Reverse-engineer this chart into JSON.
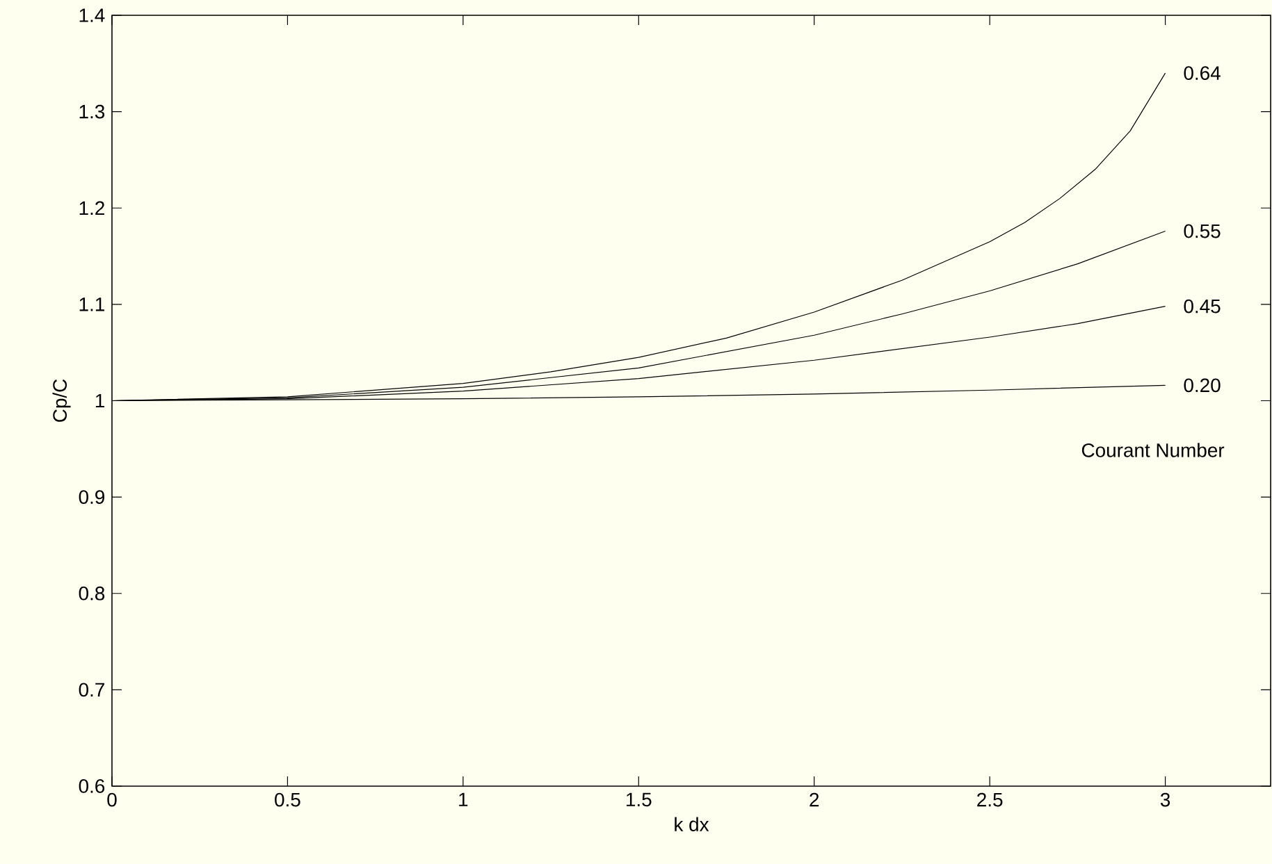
{
  "chart_data": {
    "type": "line",
    "xlabel": "k dx",
    "ylabel": "Cp/C",
    "xlim": [
      0,
      3.3
    ],
    "ylim": [
      0.6,
      1.4
    ],
    "xticks": [
      0,
      0.5,
      1,
      1.5,
      2,
      2.5,
      3
    ],
    "yticks": [
      0.6,
      0.7,
      0.8,
      0.9,
      1,
      1.1,
      1.2,
      1.3,
      1.4
    ],
    "grid": false,
    "annotations": [
      "Courant Number"
    ],
    "series": [
      {
        "name": "0.64",
        "color": "#000000",
        "x": [
          0,
          0.5,
          1,
          1.25,
          1.5,
          1.75,
          2,
          2.25,
          2.5,
          2.6,
          2.7,
          2.8,
          2.9,
          3
        ],
        "values": [
          1,
          1.004,
          1.018,
          1.03,
          1.045,
          1.065,
          1.092,
          1.125,
          1.165,
          1.185,
          1.21,
          1.24,
          1.28,
          1.34
        ]
      },
      {
        "name": "0.55",
        "color": "#000000",
        "x": [
          0,
          0.5,
          1,
          1.5,
          2,
          2.25,
          2.5,
          2.75,
          3
        ],
        "values": [
          1,
          1.003,
          1.014,
          1.034,
          1.068,
          1.09,
          1.114,
          1.142,
          1.176
        ]
      },
      {
        "name": "0.45",
        "color": "#000000",
        "x": [
          0,
          0.5,
          1,
          1.5,
          2,
          2.5,
          2.75,
          3
        ],
        "values": [
          1,
          1.002,
          1.01,
          1.023,
          1.042,
          1.066,
          1.08,
          1.098
        ]
      },
      {
        "name": "0.20",
        "color": "#000000",
        "x": [
          0,
          0.5,
          1,
          1.5,
          2,
          2.5,
          3
        ],
        "values": [
          1,
          1.001,
          1.002,
          1.004,
          1.007,
          1.011,
          1.016
        ]
      }
    ]
  }
}
